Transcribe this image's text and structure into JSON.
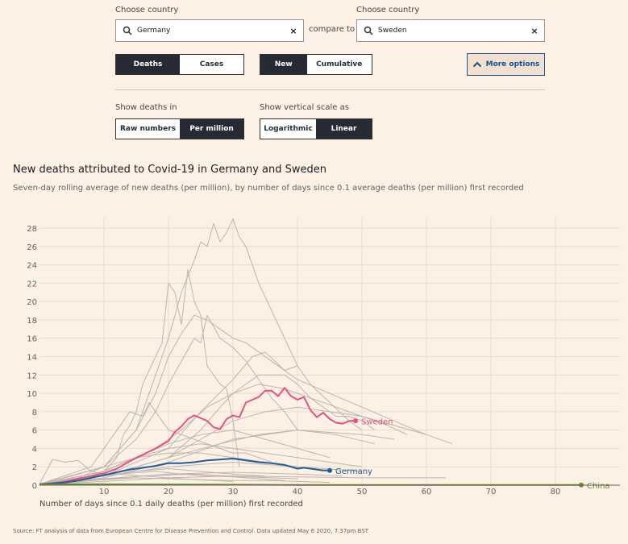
{
  "controls": {
    "country1_label": "Choose country",
    "country1_value": "Germany",
    "compare_to": "compare to",
    "country2_label": "Choose country",
    "country2_value": "Sweden",
    "metric_toggle": [
      "Deaths",
      "Cases"
    ],
    "metric_selected": "Deaths",
    "mode_toggle": [
      "New",
      "Cumulative"
    ],
    "mode_selected": "New",
    "more_options": "More options",
    "show_deaths_label": "Show deaths in",
    "deaths_toggle": [
      "Raw numbers",
      "Per million"
    ],
    "deaths_selected": "Per million",
    "scale_label": "Show vertical scale as",
    "scale_toggle": [
      "Logarithmic",
      "Linear"
    ],
    "scale_selected": "Linear"
  },
  "colors": {
    "background": "#fdf1e5",
    "germany": "#1f5c9b",
    "sweden": "#e7517f",
    "china": "#6b8c2e",
    "others": "#bdb5ad"
  },
  "source": "Source: FT analysis of data from European Centre for Disease Prevention and Control. Data updated May 6 2020, 7.37pm BST",
  "chart_data": {
    "type": "line",
    "title": "New deaths attributed to Covid-19 in Germany and Sweden",
    "subtitle": "Seven-day rolling average of new deaths (per million), by number of days since 0.1 average deaths (per million) first recorded",
    "xlabel": "Number of days since 0.1 daily deaths (per million) first recorded",
    "ylabel": "",
    "xlim": [
      0,
      90
    ],
    "ylim": [
      0,
      28
    ],
    "xticks": [
      10,
      20,
      30,
      40,
      50,
      60,
      70,
      80
    ],
    "yticks": [
      0,
      2,
      4,
      6,
      8,
      10,
      12,
      14,
      16,
      18,
      20,
      22,
      24,
      26,
      28
    ],
    "grid": true,
    "highlighted_series": [
      {
        "name": "Sweden",
        "color": "#e7517f",
        "x": [
          0,
          2,
          4,
          6,
          8,
          10,
          12,
          14,
          16,
          18,
          20,
          21,
          22,
          23,
          24,
          25,
          26,
          27,
          28,
          29,
          30,
          31,
          32,
          33,
          34,
          35,
          36,
          37,
          38,
          39,
          40,
          41,
          42,
          43,
          44,
          45,
          46,
          47,
          48,
          49
        ],
        "values": [
          0.1,
          0.2,
          0.4,
          0.7,
          1.0,
          1.3,
          1.8,
          2.6,
          3.3,
          4.0,
          4.8,
          5.8,
          6.4,
          7.2,
          7.6,
          7.3,
          7.0,
          6.3,
          6.1,
          7.2,
          7.6,
          7.4,
          9.0,
          9.3,
          9.6,
          10.3,
          10.3,
          9.7,
          10.6,
          9.7,
          9.3,
          9.6,
          8.2,
          7.4,
          7.9,
          7.2,
          6.8,
          6.7,
          7.0,
          7.0
        ]
      },
      {
        "name": "Germany",
        "color": "#1f5c9b",
        "x": [
          0,
          2,
          4,
          6,
          8,
          10,
          12,
          14,
          16,
          18,
          20,
          22,
          24,
          26,
          28,
          30,
          32,
          34,
          36,
          38,
          39,
          40,
          41,
          42,
          43,
          44,
          45
        ],
        "values": [
          0.1,
          0.2,
          0.3,
          0.5,
          0.8,
          1.1,
          1.4,
          1.7,
          1.9,
          2.1,
          2.4,
          2.4,
          2.5,
          2.7,
          2.8,
          2.9,
          2.7,
          2.5,
          2.4,
          2.2,
          2.0,
          1.8,
          1.9,
          1.8,
          1.7,
          1.6,
          1.6
        ]
      },
      {
        "name": "China",
        "color": "#6b8c2e",
        "x": [
          0,
          10,
          20,
          30,
          40,
          50,
          60,
          70,
          80,
          84
        ],
        "values": [
          0.1,
          0.1,
          0.08,
          0.05,
          0.03,
          0.02,
          0.02,
          0.02,
          0.02,
          0.02
        ]
      }
    ],
    "background_series": [
      {
        "x": [
          0,
          10,
          15,
          18,
          20,
          22,
          24,
          25,
          26,
          27,
          28,
          29,
          30,
          31,
          32,
          34,
          36,
          38,
          40
        ],
        "values": [
          0.1,
          2,
          6,
          12,
          16,
          21,
          24.5,
          26.5,
          26,
          28.5,
          26.5,
          27.5,
          29,
          27,
          26,
          22,
          19,
          16,
          13
        ]
      },
      {
        "x": [
          0,
          10,
          15,
          18,
          20,
          22,
          24,
          25,
          26,
          28,
          30,
          32,
          34,
          36,
          38,
          40
        ],
        "values": [
          0.1,
          2,
          5,
          8,
          11,
          13.5,
          16,
          15.5,
          18.5,
          16,
          15,
          13.5,
          11.5,
          9.5,
          8,
          6
        ]
      },
      {
        "x": [
          0,
          5,
          8,
          10,
          12,
          13,
          14,
          15,
          16,
          17,
          18,
          19,
          20,
          21,
          22,
          23,
          24,
          25,
          26,
          27,
          28,
          29,
          30,
          31
        ],
        "values": [
          0.1,
          0.5,
          1,
          1.5,
          3,
          5.5,
          6.5,
          8,
          11,
          12.5,
          14,
          15.5,
          22,
          21,
          17.5,
          23.5,
          20,
          18.5,
          13,
          12,
          11,
          10.5,
          7,
          2
        ]
      },
      {
        "x": [
          0,
          5,
          10,
          15,
          18,
          20,
          22,
          24,
          26,
          28,
          30,
          32,
          34,
          36,
          38,
          40,
          45,
          50,
          55,
          60
        ],
        "values": [
          0.1,
          0.5,
          2,
          6,
          10,
          14,
          16.5,
          18.5,
          18,
          17,
          16,
          15.5,
          14.5,
          13.5,
          12.5,
          11.5,
          10,
          8.5,
          7,
          5.5
        ]
      },
      {
        "x": [
          0,
          10,
          20,
          25,
          30,
          33,
          35,
          38,
          40,
          42,
          45,
          48,
          50
        ],
        "values": [
          0.1,
          1,
          4,
          8,
          11.5,
          14,
          14.5,
          12.5,
          13,
          11,
          9,
          7,
          6
        ]
      },
      {
        "x": [
          0,
          10,
          20,
          25,
          28,
          30,
          34,
          38,
          40,
          42,
          44,
          46,
          48,
          50,
          52
        ],
        "values": [
          0.1,
          1,
          3,
          6,
          8.5,
          10,
          12,
          12,
          11,
          9.5,
          8.5,
          7.5,
          7.5,
          7,
          6
        ]
      },
      {
        "x": [
          0,
          10,
          18,
          22,
          26,
          30,
          34,
          38,
          42,
          46,
          50,
          54,
          57
        ],
        "values": [
          0.1,
          1.5,
          4,
          6,
          8.5,
          10,
          11,
          10.5,
          9.5,
          8.5,
          7.5,
          6.5,
          5.5
        ]
      },
      {
        "x": [
          0,
          10,
          20,
          25,
          30,
          35,
          40,
          45,
          50,
          55,
          60,
          64
        ],
        "values": [
          0.1,
          1,
          3,
          5,
          7,
          8,
          8.5,
          8,
          7.5,
          6.5,
          5.5,
          4.5
        ]
      },
      {
        "x": [
          0,
          8,
          14,
          16,
          17,
          18,
          20,
          24,
          28,
          30,
          32,
          36
        ],
        "values": [
          0.1,
          2,
          8,
          7.5,
          9,
          8,
          6,
          5,
          4,
          3.5,
          3.5,
          2.5
        ]
      },
      {
        "x": [
          0,
          10,
          20,
          30,
          40,
          50,
          55
        ],
        "values": [
          0.1,
          0.8,
          2.5,
          5,
          6,
          5.5,
          5
        ]
      },
      {
        "x": [
          0,
          10,
          20,
          28,
          34,
          40,
          46,
          52
        ],
        "values": [
          0.1,
          1,
          3,
          4.5,
          5.5,
          6,
          5.5,
          4.5
        ]
      },
      {
        "x": [
          0,
          8,
          15,
          20,
          25,
          30,
          35,
          40,
          45
        ],
        "values": [
          0.1,
          1,
          3,
          4.5,
          5.5,
          6,
          5,
          4,
          3
        ]
      },
      {
        "x": [
          0,
          10,
          15,
          20,
          25,
          30,
          35,
          40,
          45,
          50
        ],
        "values": [
          0.1,
          1.5,
          3,
          4,
          4.5,
          4,
          3.5,
          3,
          2.5,
          2
        ]
      },
      {
        "x": [
          0,
          5,
          10,
          15,
          20,
          25,
          30,
          35,
          40
        ],
        "values": [
          0.1,
          1,
          2,
          3,
          3.5,
          3.5,
          3,
          2.5,
          2
        ]
      },
      {
        "x": [
          0,
          10,
          20,
          30,
          40,
          50
        ],
        "values": [
          0.1,
          1,
          2,
          2.5,
          2,
          1.5
        ]
      },
      {
        "x": [
          0,
          5,
          10,
          15,
          20,
          25,
          30,
          35
        ],
        "values": [
          0.1,
          0.5,
          1,
          1.5,
          1.8,
          1.5,
          1.2,
          1
        ]
      },
      {
        "x": [
          0,
          10,
          20,
          30,
          40,
          47
        ],
        "values": [
          0.1,
          0.7,
          1.2,
          1.4,
          1.2,
          1
        ]
      },
      {
        "x": [
          0,
          8,
          16,
          24,
          32,
          40
        ],
        "values": [
          0.1,
          0.5,
          1,
          1.2,
          0.9,
          0.7
        ]
      },
      {
        "x": [
          0,
          10,
          20,
          30,
          40,
          50,
          63
        ],
        "values": [
          0.1,
          0.4,
          0.8,
          1,
          0.9,
          0.8,
          0.8
        ]
      },
      {
        "x": [
          0,
          6,
          12,
          18,
          24,
          30
        ],
        "values": [
          0.1,
          0.8,
          1.2,
          0.9,
          0.6,
          0.4
        ]
      },
      {
        "x": [
          0,
          2,
          4,
          6,
          8,
          10,
          14,
          18,
          22,
          26,
          30,
          34,
          38
        ],
        "values": [
          0.1,
          2.8,
          2.5,
          2.7,
          1.5,
          1.2,
          1.3,
          1.5,
          1.2,
          1,
          0.9,
          0.7,
          0.5
        ]
      },
      {
        "x": [
          0,
          5,
          10,
          15,
          20,
          25,
          30,
          35,
          40,
          45
        ],
        "values": [
          0.1,
          0.3,
          0.6,
          0.8,
          0.7,
          0.6,
          0.5,
          0.5,
          0.4,
          0.3
        ]
      }
    ]
  }
}
